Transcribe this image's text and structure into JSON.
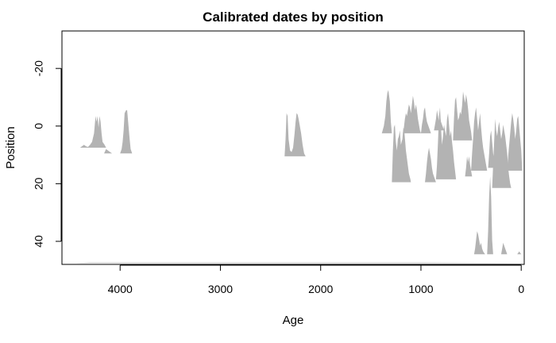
{
  "chart_data": {
    "type": "area",
    "title": "Calibrated dates by position",
    "xlabel": "Age",
    "ylabel": "Position",
    "xlim": [
      4580,
      -30
    ],
    "ylim": [
      48,
      -33
    ],
    "x_reversed": true,
    "y_reversed": true,
    "x_ticks": [
      4000,
      3000,
      2000,
      1000,
      0
    ],
    "x_tick_labels": [
      "4000",
      "3000",
      "2000",
      "1000",
      "0"
    ],
    "y_ticks": [
      -20,
      0,
      20,
      40
    ],
    "y_tick_labels": [
      "-20",
      "0",
      "20",
      "40"
    ],
    "fill_color": "#b3b3b3",
    "grid": false,
    "legend": "none",
    "series": [
      {
        "baseline": 7.5,
        "points": [
          [
            4400,
            0
          ],
          [
            4380,
            -1
          ],
          [
            4360,
            -2
          ],
          [
            4340,
            -1
          ],
          [
            4320,
            -0.5
          ],
          [
            4300,
            -2
          ],
          [
            4280,
            -4
          ],
          [
            4260,
            -10
          ],
          [
            4245,
            -22
          ],
          [
            4235,
            -18
          ],
          [
            4225,
            -22
          ],
          [
            4215,
            -14
          ],
          [
            4205,
            -22
          ],
          [
            4195,
            -18
          ],
          [
            4185,
            -10
          ],
          [
            4175,
            -4
          ],
          [
            4165,
            -3
          ],
          [
            4155,
            -2
          ],
          [
            4140,
            0
          ]
        ]
      },
      {
        "baseline": 9.5,
        "points": [
          [
            4160,
            0
          ],
          [
            4140,
            -3
          ],
          [
            4120,
            -2
          ],
          [
            4100,
            -1
          ],
          [
            4080,
            0
          ]
        ]
      },
      {
        "baseline": 9.5,
        "points": [
          [
            4000,
            0
          ],
          [
            3985,
            -3
          ],
          [
            3975,
            -8
          ],
          [
            3965,
            -16
          ],
          [
            3955,
            -28
          ],
          [
            3940,
            -30
          ],
          [
            3930,
            -30
          ],
          [
            3920,
            -22
          ],
          [
            3905,
            -10
          ],
          [
            3895,
            -3
          ],
          [
            3880,
            0
          ]
        ]
      },
      {
        "baseline": 10.5,
        "points": [
          [
            2360,
            0
          ],
          [
            2350,
            -12
          ],
          [
            2340,
            -30
          ],
          [
            2330,
            -28
          ],
          [
            2320,
            -12
          ],
          [
            2305,
            -4
          ],
          [
            2290,
            -3
          ],
          [
            2275,
            -6
          ],
          [
            2260,
            -16
          ],
          [
            2250,
            -24
          ],
          [
            2240,
            -30
          ],
          [
            2230,
            -29
          ],
          [
            2220,
            -26
          ],
          [
            2210,
            -22
          ],
          [
            2195,
            -16
          ],
          [
            2180,
            -8
          ],
          [
            2165,
            -2
          ],
          [
            2150,
            0
          ]
        ]
      },
      {
        "baseline": 2.5,
        "points": [
          [
            1390,
            0
          ],
          [
            1370,
            -5
          ],
          [
            1355,
            -12
          ],
          [
            1345,
            -22
          ],
          [
            1335,
            -28
          ],
          [
            1325,
            -30
          ],
          [
            1310,
            -22
          ],
          [
            1300,
            -8
          ],
          [
            1290,
            0
          ]
        ]
      },
      {
        "baseline": 19.5,
        "points": [
          [
            1290,
            0
          ],
          [
            1280,
            -22
          ],
          [
            1270,
            -38
          ],
          [
            1260,
            -40
          ],
          [
            1250,
            -28
          ],
          [
            1240,
            -22
          ],
          [
            1230,
            -30
          ],
          [
            1220,
            -32
          ],
          [
            1210,
            -36
          ],
          [
            1200,
            -26
          ],
          [
            1185,
            -30
          ],
          [
            1175,
            -38
          ],
          [
            1165,
            -35
          ],
          [
            1150,
            -22
          ],
          [
            1135,
            -14
          ],
          [
            1120,
            -6
          ],
          [
            1105,
            -2
          ],
          [
            1100,
            0
          ]
        ]
      },
      {
        "baseline": 2.5,
        "points": [
          [
            1180,
            0
          ],
          [
            1170,
            -4
          ],
          [
            1160,
            -10
          ],
          [
            1150,
            -14
          ],
          [
            1140,
            -12
          ],
          [
            1130,
            -16
          ],
          [
            1120,
            -20
          ],
          [
            1110,
            -18
          ],
          [
            1100,
            -14
          ],
          [
            1090,
            -20
          ],
          [
            1080,
            -26
          ],
          [
            1070,
            -22
          ],
          [
            1060,
            -16
          ],
          [
            1050,
            -20
          ],
          [
            1040,
            -16
          ],
          [
            1030,
            -10
          ],
          [
            1020,
            -6
          ],
          [
            1010,
            -2
          ],
          [
            1000,
            0
          ]
        ]
      },
      {
        "baseline": 19.5,
        "points": [
          [
            960,
            0
          ],
          [
            950,
            -6
          ],
          [
            940,
            -14
          ],
          [
            930,
            -20
          ],
          [
            920,
            -24
          ],
          [
            910,
            -20
          ],
          [
            900,
            -16
          ],
          [
            890,
            -10
          ],
          [
            880,
            -6
          ],
          [
            870,
            -4
          ],
          [
            860,
            -2
          ],
          [
            850,
            0
          ]
        ]
      },
      {
        "baseline": 2.5,
        "points": [
          [
            1000,
            0
          ],
          [
            990,
            -6
          ],
          [
            980,
            -10
          ],
          [
            970,
            -16
          ],
          [
            960,
            -18
          ],
          [
            950,
            -12
          ],
          [
            940,
            -8
          ],
          [
            930,
            -6
          ],
          [
            920,
            -4
          ],
          [
            910,
            -2
          ],
          [
            900,
            0
          ]
        ]
      },
      {
        "baseline": 18.5,
        "points": [
          [
            850,
            0
          ],
          [
            840,
            -10
          ],
          [
            830,
            -26
          ],
          [
            820,
            -44
          ],
          [
            810,
            -50
          ],
          [
            800,
            -36
          ],
          [
            790,
            -24
          ],
          [
            780,
            -30
          ],
          [
            770,
            -38
          ],
          [
            760,
            -34
          ],
          [
            750,
            -30
          ],
          [
            740,
            -42
          ],
          [
            730,
            -46
          ],
          [
            720,
            -38
          ],
          [
            710,
            -30
          ],
          [
            700,
            -34
          ],
          [
            690,
            -26
          ],
          [
            680,
            -20
          ],
          [
            670,
            -12
          ],
          [
            660,
            -6
          ],
          [
            650,
            0
          ]
        ]
      },
      {
        "baseline": 1.5,
        "points": [
          [
            870,
            0
          ],
          [
            860,
            -4
          ],
          [
            850,
            -8
          ],
          [
            840,
            -14
          ],
          [
            830,
            -10
          ],
          [
            820,
            -6
          ],
          [
            810,
            -10
          ],
          [
            800,
            -6
          ],
          [
            790,
            -4
          ],
          [
            780,
            -2
          ],
          [
            770,
            0
          ]
        ]
      },
      {
        "baseline": 17.5,
        "points": [
          [
            560,
            0
          ],
          [
            550,
            -6
          ],
          [
            540,
            -14
          ],
          [
            530,
            -10
          ],
          [
            520,
            -14
          ],
          [
            510,
            -8
          ],
          [
            500,
            -4
          ],
          [
            490,
            0
          ]
        ]
      },
      {
        "baseline": 5,
        "points": [
          [
            680,
            0
          ],
          [
            670,
            -16
          ],
          [
            660,
            -28
          ],
          [
            650,
            -30
          ],
          [
            640,
            -22
          ],
          [
            630,
            -14
          ],
          [
            620,
            -16
          ],
          [
            610,
            -20
          ],
          [
            600,
            -18
          ],
          [
            590,
            -24
          ],
          [
            580,
            -34
          ],
          [
            570,
            -30
          ],
          [
            560,
            -26
          ],
          [
            550,
            -32
          ],
          [
            540,
            -28
          ],
          [
            530,
            -22
          ],
          [
            520,
            -14
          ],
          [
            510,
            -10
          ],
          [
            500,
            -6
          ],
          [
            490,
            0
          ]
        ]
      },
      {
        "baseline": 44.5,
        "points": [
          [
            470,
            0
          ],
          [
            460,
            -4
          ],
          [
            450,
            -10
          ],
          [
            440,
            -16
          ],
          [
            430,
            -14
          ],
          [
            420,
            -10
          ],
          [
            410,
            -6
          ],
          [
            400,
            -8
          ],
          [
            390,
            -4
          ],
          [
            380,
            -2
          ],
          [
            370,
            -1
          ],
          [
            360,
            0
          ]
        ]
      },
      {
        "baseline": 15.5,
        "points": [
          [
            500,
            0
          ],
          [
            490,
            -12
          ],
          [
            480,
            -22
          ],
          [
            470,
            -34
          ],
          [
            460,
            -40
          ],
          [
            450,
            -44
          ],
          [
            440,
            -36
          ],
          [
            430,
            -28
          ],
          [
            420,
            -34
          ],
          [
            410,
            -40
          ],
          [
            400,
            -30
          ],
          [
            390,
            -22
          ],
          [
            380,
            -16
          ],
          [
            370,
            -12
          ],
          [
            360,
            -8
          ],
          [
            350,
            -4
          ],
          [
            340,
            0
          ]
        ]
      },
      {
        "baseline": 44.5,
        "points": [
          [
            340,
            0
          ],
          [
            330,
            -16
          ],
          [
            320,
            -40
          ],
          [
            310,
            -54
          ],
          [
            300,
            -40
          ],
          [
            290,
            -10
          ],
          [
            280,
            0
          ]
        ]
      },
      {
        "baseline": 14.5,
        "points": [
          [
            330,
            0
          ],
          [
            320,
            -10
          ],
          [
            310,
            -22
          ],
          [
            300,
            -26
          ],
          [
            290,
            -18
          ],
          [
            280,
            -10
          ],
          [
            270,
            -6
          ],
          [
            260,
            -2
          ],
          [
            250,
            0
          ]
        ]
      },
      {
        "baseline": 21.5,
        "points": [
          [
            290,
            0
          ],
          [
            280,
            -16
          ],
          [
            270,
            -32
          ],
          [
            260,
            -48
          ],
          [
            250,
            -40
          ],
          [
            240,
            -36
          ],
          [
            230,
            -42
          ],
          [
            220,
            -46
          ],
          [
            210,
            -40
          ],
          [
            200,
            -34
          ],
          [
            190,
            -38
          ],
          [
            180,
            -44
          ],
          [
            170,
            -40
          ],
          [
            160,
            -36
          ],
          [
            150,
            -30
          ],
          [
            140,
            -24
          ],
          [
            130,
            -14
          ],
          [
            120,
            -8
          ],
          [
            110,
            -3
          ],
          [
            100,
            0
          ]
        ]
      },
      {
        "baseline": 44.5,
        "points": [
          [
            200,
            0
          ],
          [
            190,
            -4
          ],
          [
            180,
            -8
          ],
          [
            170,
            -6
          ],
          [
            160,
            -4
          ],
          [
            150,
            -2
          ],
          [
            140,
            0
          ]
        ]
      },
      {
        "baseline": 15.5,
        "points": [
          [
            140,
            0
          ],
          [
            130,
            -10
          ],
          [
            120,
            -18
          ],
          [
            110,
            -26
          ],
          [
            100,
            -34
          ],
          [
            90,
            -40
          ],
          [
            80,
            -36
          ],
          [
            70,
            -30
          ],
          [
            60,
            -22
          ],
          [
            50,
            -28
          ],
          [
            40,
            -36
          ],
          [
            30,
            -38
          ],
          [
            20,
            -30
          ],
          [
            10,
            -22
          ],
          [
            0,
            -14
          ],
          [
            -10,
            0
          ]
        ]
      },
      {
        "baseline": 44.5,
        "points": [
          [
            40,
            0
          ],
          [
            30,
            -1
          ],
          [
            20,
            -2
          ],
          [
            10,
            -1
          ],
          [
            0,
            0
          ]
        ]
      },
      {
        "baseline": 47.5,
        "points": [
          [
            4440,
            0
          ],
          [
            4300,
            -0.3
          ],
          [
            4000,
            -0.3
          ],
          [
            3000,
            -0.3
          ],
          [
            2000,
            -0.3
          ],
          [
            1000,
            -0.3
          ],
          [
            0,
            0
          ]
        ]
      }
    ]
  }
}
